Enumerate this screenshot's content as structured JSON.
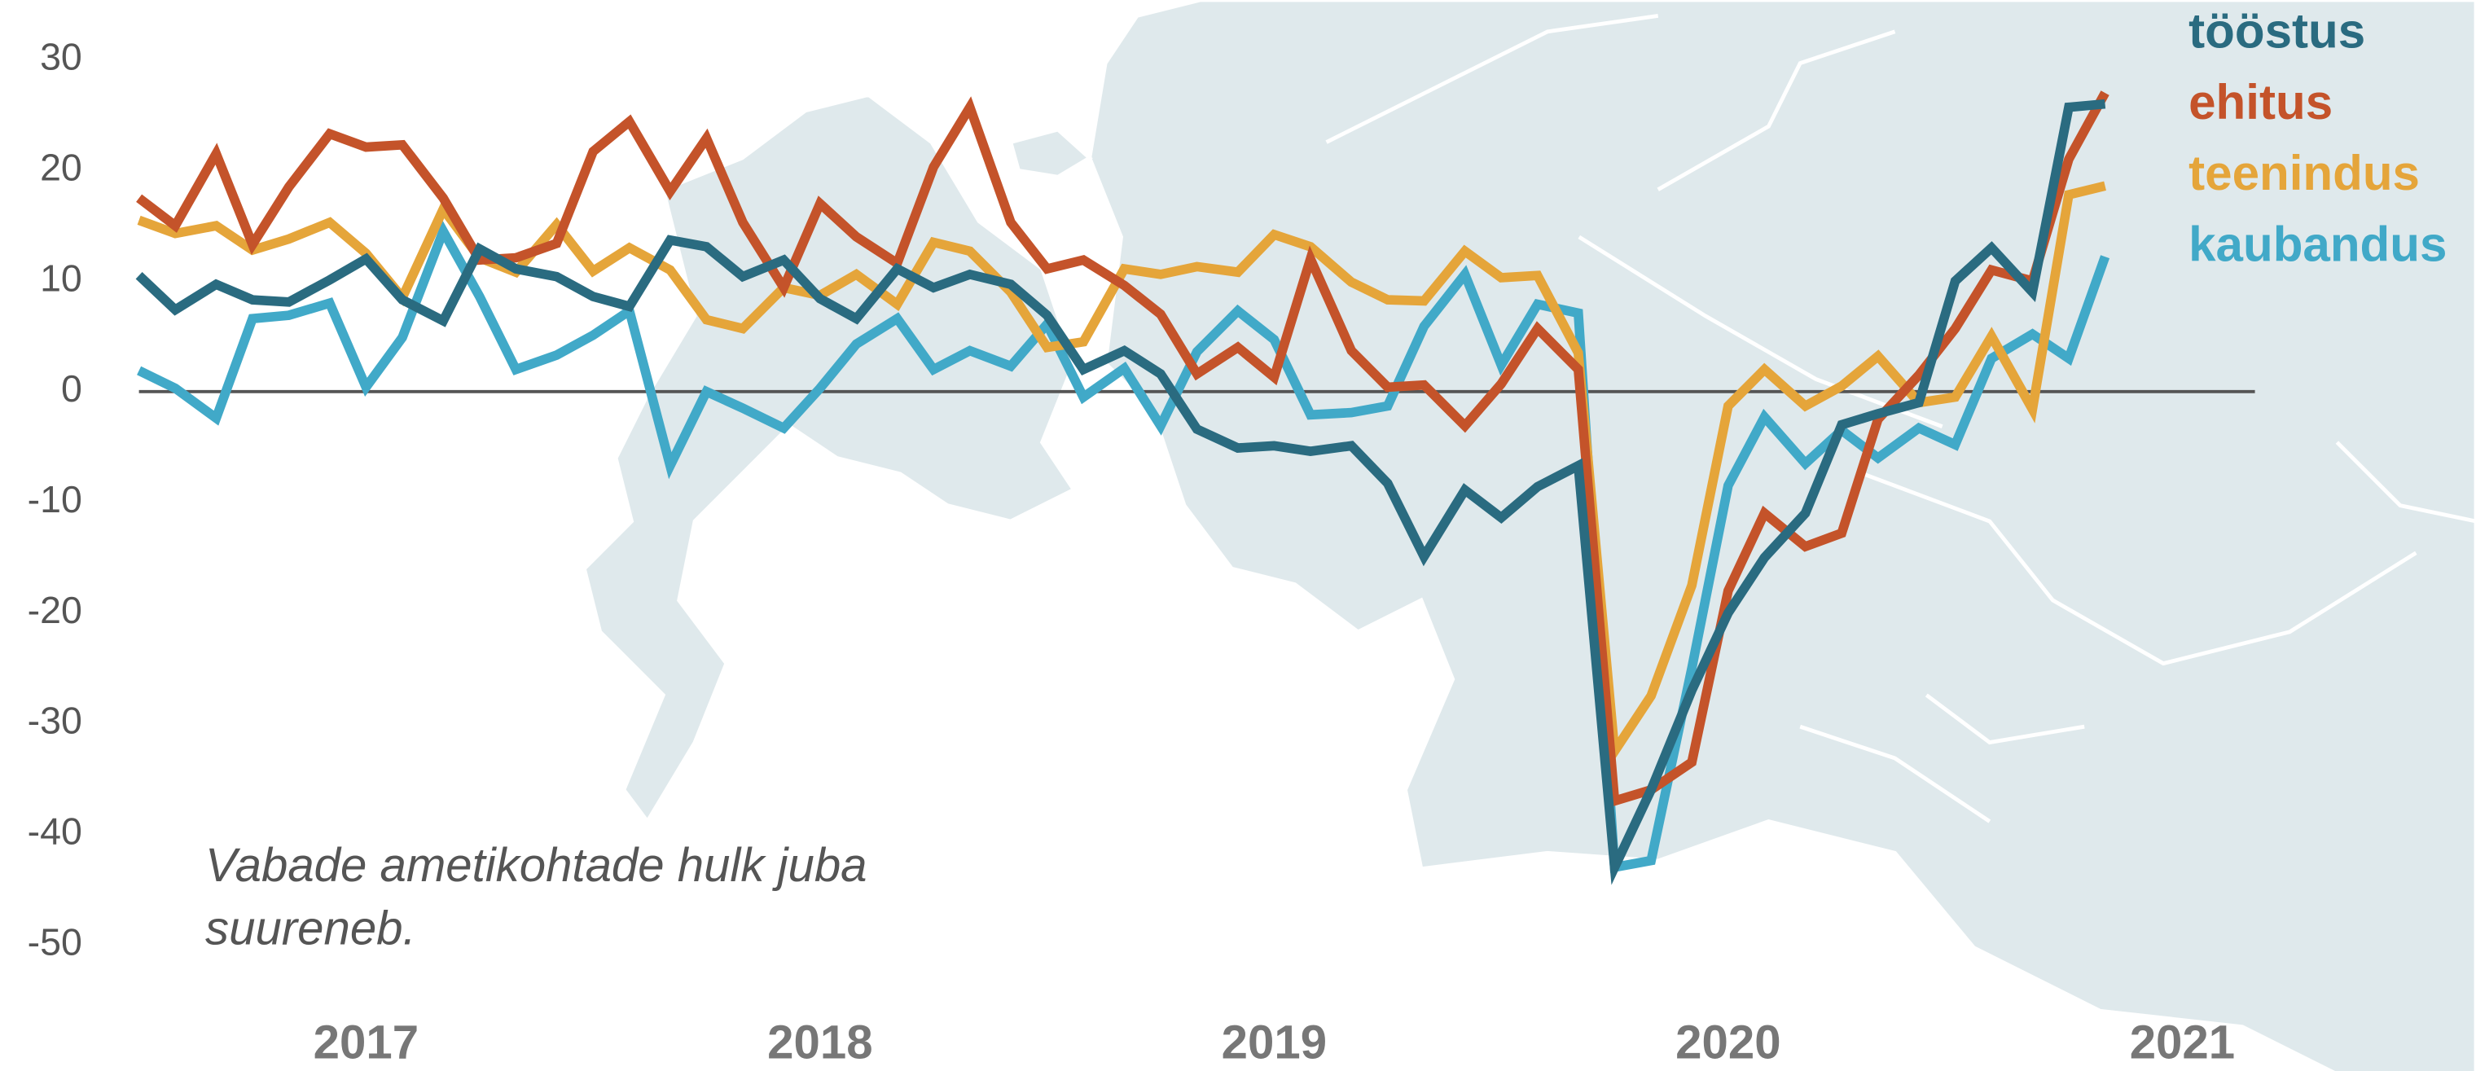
{
  "chart_data": {
    "type": "line",
    "annotation": [
      "Vabade ametikohtade hulk juba",
      "suureneb."
    ],
    "x": [
      2016.5,
      2016.58,
      2016.67,
      2016.75,
      2016.83,
      2016.92,
      2017,
      2017.08,
      2017.17,
      2017.25,
      2017.33,
      2017.42,
      2017.5,
      2017.58,
      2017.67,
      2017.75,
      2017.83,
      2017.92,
      2018,
      2018.08,
      2018.17,
      2018.25,
      2018.33,
      2018.42,
      2018.5,
      2018.58,
      2018.67,
      2018.75,
      2018.83,
      2018.92,
      2019,
      2019.08,
      2019.17,
      2019.25,
      2019.33,
      2019.42,
      2019.5,
      2019.58,
      2019.67,
      2019.75,
      2019.83,
      2019.92,
      2020,
      2020.08,
      2020.17,
      2020.25,
      2020.33,
      2020.42,
      2020.5,
      2020.58,
      2020.67,
      2020.75,
      2020.83
    ],
    "series": [
      {
        "name": "tööstus",
        "color": "#2a6b80",
        "values": [
          10.5,
          7.4,
          9.7,
          8.3,
          8.1,
          10.1,
          12,
          8.3,
          6.4,
          12.9,
          11.1,
          10.4,
          8.6,
          7.7,
          13.7,
          13.1,
          10.4,
          11.9,
          8.4,
          6.6,
          11.1,
          9.4,
          10.6,
          9.7,
          6.9,
          2,
          3.7,
          1.6,
          -3.4,
          -5.1,
          -4.9,
          -5.4,
          -4.9,
          -8.3,
          -14.9,
          -8.9,
          -11.4,
          -8.6,
          -6.7,
          -43,
          -36,
          -27,
          -20,
          -15,
          -11,
          -3,
          -2,
          -1,
          10,
          13,
          9,
          25.7,
          26
        ]
      },
      {
        "name": "ehitus",
        "color": "#c4532a",
        "values": [
          17.5,
          15,
          21.5,
          13.3,
          18.5,
          23.3,
          22.1,
          22.3,
          17.5,
          11.9,
          12.1,
          13.4,
          21.7,
          24.4,
          18.1,
          22.9,
          15.3,
          9.4,
          17,
          14,
          11.6,
          20.3,
          25.7,
          15.3,
          11.1,
          11.9,
          9.6,
          7,
          1.6,
          4,
          1.3,
          12,
          3.7,
          0.4,
          0.6,
          -3.1,
          0.7,
          5.7,
          2,
          -37,
          -36,
          -33.5,
          -18,
          -11,
          -14,
          -12.8,
          -2.5,
          1.5,
          5.7,
          11,
          10,
          21,
          27
        ]
      },
      {
        "name": "teenindus",
        "color": "#e5a53a",
        "values": [
          15.5,
          14.3,
          15,
          12.8,
          13.8,
          15.3,
          12.5,
          8.5,
          16.5,
          12.1,
          10.8,
          15.1,
          10.9,
          13,
          11,
          6.5,
          5.7,
          9.4,
          8.7,
          10.6,
          7.9,
          13.5,
          12.7,
          9,
          4,
          4.5,
          11.1,
          10.6,
          11.3,
          10.8,
          14.2,
          13.1,
          9.9,
          8.3,
          8.2,
          12.7,
          10.3,
          10.5,
          3.5,
          -32.5,
          -27.5,
          -17.5,
          -1.3,
          2,
          -1.3,
          0.5,
          3.2,
          -1,
          -0.5,
          5,
          -1.6,
          17.8,
          18.6
        ]
      },
      {
        "name": "kaubandus",
        "color": "#41a9c8",
        "values": [
          1.9,
          0.3,
          -2.4,
          6.6,
          6.9,
          8,
          0.4,
          4.9,
          14.5,
          8.6,
          2,
          3.3,
          5.1,
          7.3,
          -6.7,
          0,
          -1.5,
          -3.3,
          0.3,
          4.3,
          6.6,
          2,
          3.7,
          2.3,
          6.1,
          -0.5,
          2.1,
          -3.1,
          3.6,
          7.3,
          4.7,
          -2.1,
          -1.9,
          -1.3,
          5.9,
          10.6,
          2.4,
          7.9,
          7.1,
          -43,
          -42.4,
          -25,
          -8.5,
          -2.3,
          -6.5,
          -3.5,
          -6,
          -3.3,
          -4.8,
          3,
          5.2,
          3,
          12.2
        ]
      }
    ],
    "xlim": [
      2016.5,
      2021.16
    ],
    "xticks": [
      2017,
      2018,
      2019,
      2020,
      2021
    ],
    "ylim": [
      -61.7,
      35.4
    ],
    "yticks": [
      30,
      20,
      10,
      0,
      -10,
      -20,
      -30,
      -40,
      -50
    ],
    "grid": false,
    "legend": "upper right"
  }
}
